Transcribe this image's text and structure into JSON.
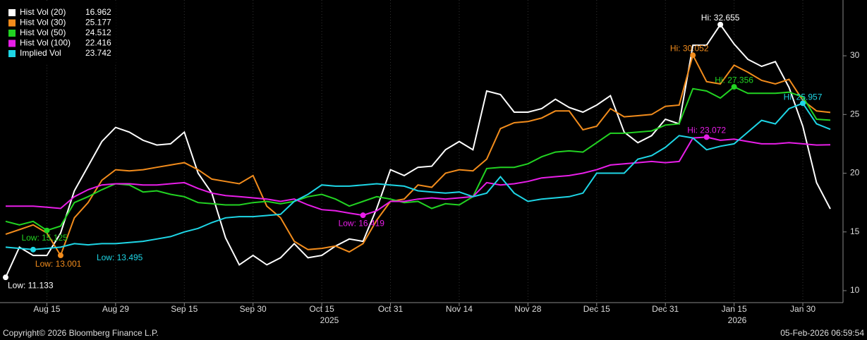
{
  "chart_data": {
    "type": "line",
    "categories": [
      null,
      null,
      null,
      "Aug 15",
      null,
      null,
      null,
      null,
      "Aug 29",
      null,
      null,
      null,
      null,
      "Sep 15",
      null,
      null,
      null,
      null,
      "Sep 30",
      null,
      null,
      null,
      null,
      "Oct 15",
      null,
      null,
      null,
      null,
      "Oct 31",
      null,
      null,
      null,
      null,
      "Nov 14",
      null,
      null,
      null,
      null,
      "Nov 28",
      null,
      null,
      null,
      null,
      "Dec 15",
      null,
      null,
      null,
      null,
      "Dec 31",
      null,
      null,
      null,
      null,
      "Jan 15",
      null,
      null,
      null,
      null,
      "Jan 30",
      null,
      null
    ],
    "year_labels": [
      "2025",
      "2026"
    ],
    "ylim": [
      9.04,
      34.75
    ],
    "yticks": [
      10,
      15,
      20,
      25,
      30
    ],
    "series": [
      {
        "name": "Hist Vol (20)",
        "color": "#ffffff",
        "last": 16.962,
        "low_label": "Low: 11.133",
        "high_label": "Hi: 32.655",
        "values": [
          11.133,
          13.7,
          13.0,
          13.0,
          14.9,
          18.5,
          20.6,
          22.7,
          23.9,
          23.5,
          22.8,
          22.4,
          22.5,
          23.5,
          20.0,
          18.3,
          14.5,
          12.2,
          13.0,
          12.2,
          12.8,
          14.0,
          12.8,
          13.0,
          13.8,
          14.4,
          14.2,
          17.0,
          20.3,
          19.8,
          20.5,
          20.6,
          22.0,
          22.7,
          22.0,
          27.0,
          26.7,
          25.2,
          25.2,
          25.5,
          26.3,
          25.6,
          25.2,
          25.8,
          26.6,
          23.5,
          22.6,
          23.2,
          24.6,
          24.2,
          30.9,
          30.9,
          32.655,
          31.0,
          29.7,
          29.1,
          29.5,
          27.3,
          24.0,
          19.2,
          16.962
        ]
      },
      {
        "name": "Hist Vol (30)",
        "color": "#f28c1c",
        "last": 25.177,
        "low_label": "Low: 13.001",
        "high_label": "Hi: 30.052",
        "values": [
          14.8,
          15.2,
          15.6,
          14.9,
          13.001,
          16.2,
          17.5,
          19.4,
          20.3,
          20.2,
          20.3,
          20.5,
          20.7,
          20.9,
          20.3,
          19.5,
          19.3,
          19.1,
          19.8,
          17.2,
          16.2,
          14.2,
          13.5,
          13.6,
          13.8,
          13.3,
          14.0,
          16.0,
          17.6,
          17.8,
          19.0,
          18.8,
          20.0,
          20.3,
          20.2,
          21.2,
          23.8,
          24.3,
          24.4,
          24.7,
          25.3,
          25.3,
          23.7,
          24.0,
          25.5,
          24.8,
          24.9,
          25.0,
          25.7,
          25.8,
          30.052,
          27.8,
          27.6,
          29.2,
          28.6,
          27.9,
          27.6,
          28.0,
          26.2,
          25.3,
          25.177
        ]
      },
      {
        "name": "Hist Vol (50)",
        "color": "#22d322",
        "last": 24.512,
        "low_label": "Low: 15.125",
        "high_label": "Hi: 27.356",
        "values": [
          15.9,
          15.6,
          15.9,
          15.125,
          15.5,
          17.5,
          18.0,
          18.6,
          19.1,
          19.0,
          18.4,
          18.5,
          18.2,
          18.0,
          17.5,
          17.4,
          17.3,
          17.3,
          17.5,
          17.6,
          17.4,
          17.6,
          18.0,
          18.2,
          17.8,
          17.2,
          17.6,
          18.0,
          17.8,
          17.5,
          17.6,
          17.0,
          17.4,
          17.3,
          18.0,
          20.4,
          20.5,
          20.5,
          20.8,
          21.4,
          21.8,
          21.9,
          21.8,
          22.6,
          23.4,
          23.4,
          23.5,
          23.6,
          24.1,
          24.2,
          27.2,
          27.0,
          26.4,
          27.356,
          26.8,
          26.8,
          26.8,
          26.9,
          26.5,
          24.6,
          24.512
        ]
      },
      {
        "name": "Hist Vol (100)",
        "color": "#e81ee8",
        "last": 22.416,
        "low_label": "Low: 16.419",
        "high_label": "Hi: 23.072",
        "values": [
          17.2,
          17.2,
          17.2,
          17.1,
          17.0,
          18.0,
          18.6,
          19.0,
          19.1,
          19.1,
          19.0,
          19.0,
          19.1,
          19.2,
          18.7,
          18.3,
          18.1,
          18.0,
          17.9,
          17.8,
          17.6,
          17.8,
          17.3,
          16.9,
          16.8,
          16.6,
          16.419,
          16.8,
          17.6,
          17.6,
          17.8,
          17.9,
          17.8,
          17.9,
          18.0,
          19.2,
          19.0,
          19.1,
          19.3,
          19.6,
          19.7,
          19.8,
          20.0,
          20.3,
          20.7,
          20.8,
          20.9,
          21.0,
          20.9,
          21.0,
          23.0,
          23.072,
          22.8,
          22.9,
          22.7,
          22.5,
          22.5,
          22.6,
          22.5,
          22.4,
          22.416
        ]
      },
      {
        "name": "Implied Vol",
        "color": "#1ed6e6",
        "last": 23.742,
        "low_label": "Low: 13.495",
        "high_label": "Hi: 25.957",
        "values": [
          13.7,
          13.6,
          13.495,
          13.6,
          13.7,
          14.0,
          13.9,
          14.0,
          14.0,
          14.1,
          14.2,
          14.4,
          14.6,
          15.0,
          15.3,
          15.8,
          16.2,
          16.3,
          16.3,
          16.4,
          16.5,
          17.6,
          18.2,
          19.0,
          18.9,
          18.9,
          19.0,
          19.1,
          19.0,
          18.9,
          18.5,
          18.4,
          18.3,
          18.4,
          18.0,
          18.3,
          19.7,
          18.3,
          17.6,
          17.8,
          17.9,
          18.0,
          18.3,
          20.0,
          20.0,
          20.0,
          21.2,
          21.5,
          22.2,
          23.2,
          23.0,
          22.0,
          22.3,
          22.5,
          23.5,
          24.5,
          24.2,
          25.5,
          25.957,
          24.2,
          23.742
        ]
      }
    ],
    "footer_left": "Copyright© 2026 Bloomberg Finance L.P.",
    "footer_right": "05-Feb-2026 06:59:54"
  }
}
